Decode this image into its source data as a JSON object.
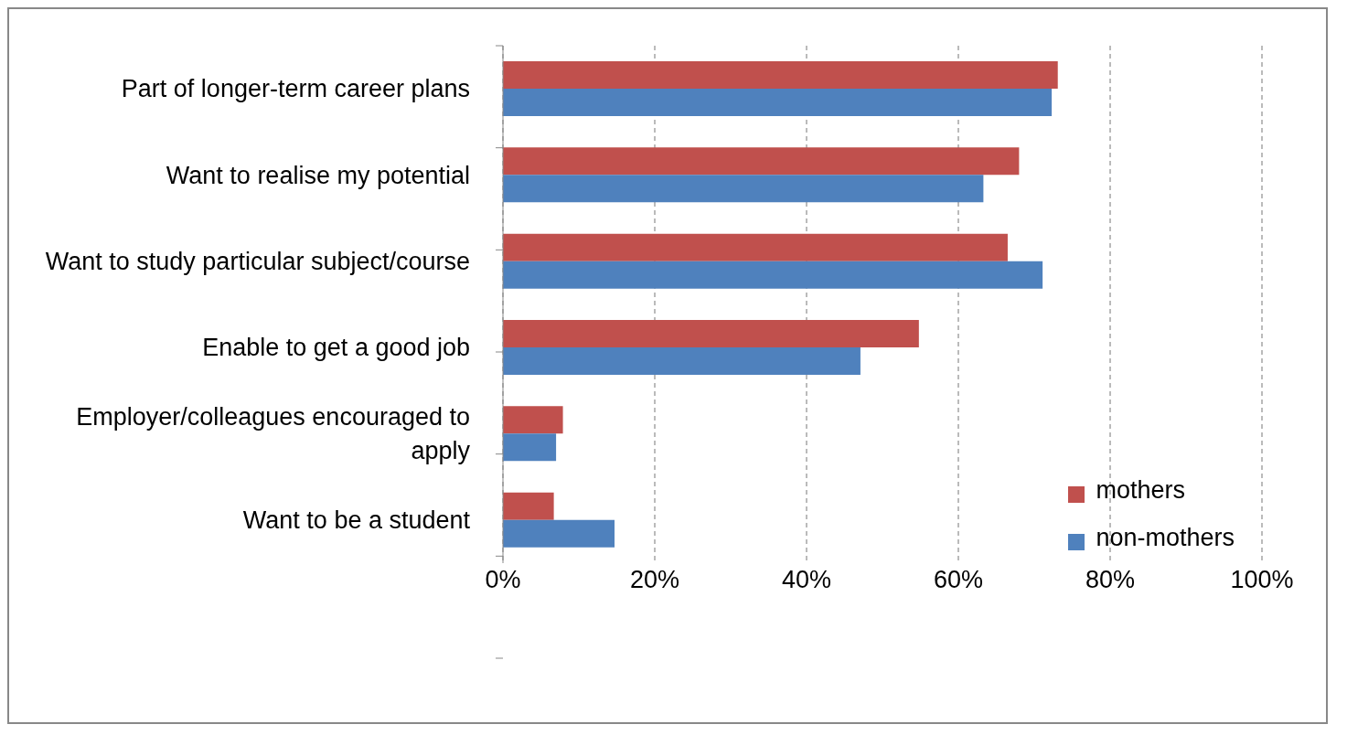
{
  "chart_data": {
    "type": "bar",
    "orientation": "horizontal",
    "categories": [
      "Part of longer-term career plans",
      "Want to realise my potential",
      "Want to study particular subject/course",
      "Enable to get a good job",
      "Employer/colleagues encouraged to apply",
      "Want to be a student"
    ],
    "series": [
      {
        "name": "mothers",
        "color": "#c0504d",
        "values": [
          73.1,
          68.0,
          66.5,
          54.8,
          7.9,
          6.7
        ]
      },
      {
        "name": "non-mothers",
        "color": "#4f81bd",
        "values": [
          72.3,
          63.3,
          71.1,
          47.1,
          7.0,
          14.7
        ]
      }
    ],
    "xlim": [
      0,
      100
    ],
    "xticks": [
      {
        "value": 0,
        "label": "0%"
      },
      {
        "value": 20,
        "label": "20%"
      },
      {
        "value": 40,
        "label": "40%"
      },
      {
        "value": 60,
        "label": "60%"
      },
      {
        "value": 80,
        "label": "80%"
      },
      {
        "value": 100,
        "label": "100%"
      }
    ],
    "grid": "x",
    "legend": "right"
  }
}
